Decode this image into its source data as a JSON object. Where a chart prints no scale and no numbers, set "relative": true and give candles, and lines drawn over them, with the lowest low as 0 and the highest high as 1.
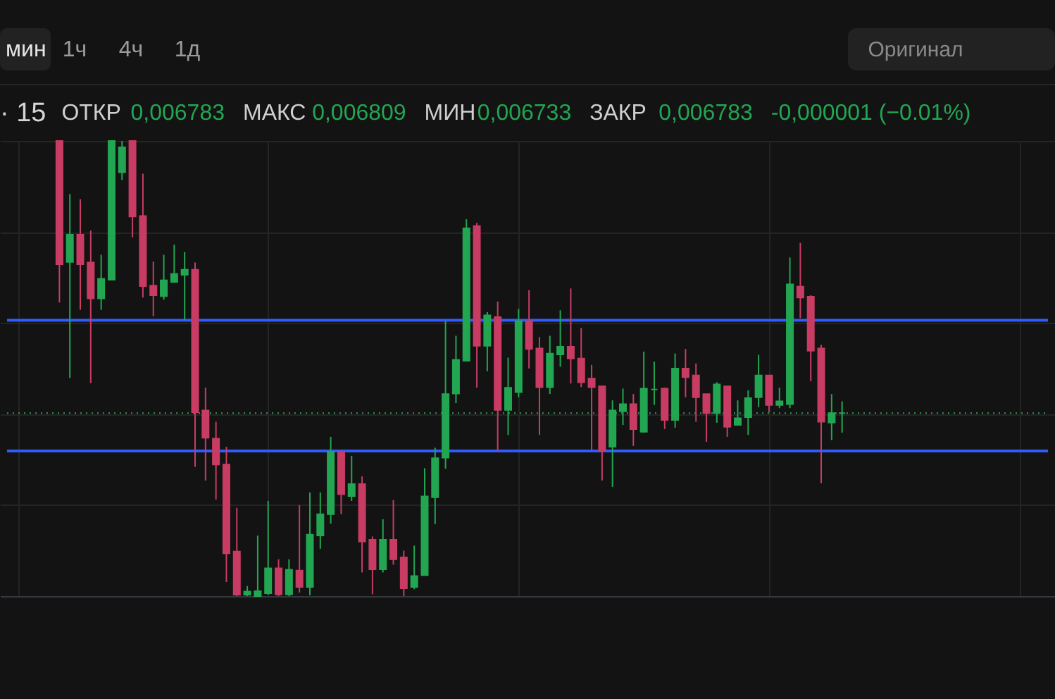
{
  "chart_data": {
    "type": "candlestick",
    "title": "· 15",
    "annotations": [
      "мин",
      "1ч",
      "4ч",
      "1д",
      "Оригинал",
      "ОТКР",
      "0,006783",
      "МАКС",
      "0,006809",
      "МИН",
      "0,006733",
      "ЗАКР",
      "0,006783",
      "-0,000001 (−0.01%)"
    ],
    "relative": true,
    "grid": true,
    "categories": [
      null,
      null,
      null,
      null,
      null,
      null,
      null,
      null,
      null,
      null,
      null,
      null,
      null,
      null,
      null,
      null,
      null,
      null,
      null,
      null,
      null,
      null,
      null,
      null,
      null,
      null,
      null,
      null,
      null,
      null,
      null,
      null,
      null,
      null,
      null,
      null,
      null,
      null,
      null,
      null,
      null,
      null,
      null,
      null,
      null,
      null,
      null,
      null,
      null,
      null,
      null,
      null,
      null,
      null,
      null,
      null,
      null,
      null,
      null,
      null,
      null,
      null,
      null,
      null,
      null,
      null,
      null,
      null,
      null,
      null,
      null,
      null,
      null,
      null,
      null,
      null
    ],
    "ohlc": [
      [
        1.0,
        1.0,
        0.645,
        0.729
      ],
      [
        0.734,
        0.883,
        0.479,
        0.794
      ],
      [
        0.794,
        0.872,
        0.629,
        0.729
      ],
      [
        0.733,
        0.803,
        0.468,
        0.654
      ],
      [
        0.654,
        0.75,
        0.629,
        0.697
      ],
      [
        0.695,
        1.0,
        0.695,
        1.0
      ],
      [
        0.931,
        1.0,
        0.914,
        0.986
      ],
      [
        1.0,
        1.0,
        0.788,
        0.834
      ],
      [
        0.835,
        0.928,
        0.656,
        0.681
      ],
      [
        0.682,
        0.735,
        0.615,
        0.661
      ],
      [
        0.659,
        0.75,
        0.651,
        0.694
      ],
      [
        0.69,
        0.772,
        0.69,
        0.708
      ],
      [
        0.706,
        0.756,
        0.606,
        0.717
      ],
      [
        0.717,
        0.733,
        0.284,
        0.404
      ],
      [
        0.408,
        0.458,
        0.254,
        0.348
      ],
      [
        0.346,
        0.383,
        0.212,
        0.289
      ],
      [
        0.289,
        0.328,
        0.031,
        0.094
      ],
      [
        0.098,
        0.194,
        0.0,
        0.003
      ],
      [
        0.003,
        0.022,
        0.0,
        0.01
      ],
      [
        0.0,
        0.133,
        0.0,
        0.011
      ],
      [
        0.006,
        0.209,
        0.003,
        0.061
      ],
      [
        0.061,
        0.081,
        0.0,
        0.004
      ],
      [
        0.004,
        0.081,
        0.0,
        0.058
      ],
      [
        0.056,
        0.2,
        0.008,
        0.02
      ],
      [
        0.02,
        0.228,
        0.002,
        0.135
      ],
      [
        0.133,
        0.228,
        0.104,
        0.18
      ],
      [
        0.18,
        0.35,
        0.159,
        0.317
      ],
      [
        0.317,
        0.322,
        0.18,
        0.224
      ],
      [
        0.22,
        0.308,
        0.209,
        0.246
      ],
      [
        0.246,
        0.263,
        0.052,
        0.12
      ],
      [
        0.124,
        0.131,
        0.004,
        0.059
      ],
      [
        0.059,
        0.169,
        0.052,
        0.124
      ],
      [
        0.124,
        0.211,
        0.069,
        0.081
      ],
      [
        0.085,
        0.1,
        0.0,
        0.017
      ],
      [
        0.02,
        0.111,
        0.015,
        0.044
      ],
      [
        0.046,
        0.281,
        0.046,
        0.219
      ],
      [
        0.217,
        0.326,
        0.158,
        0.303
      ],
      [
        0.304,
        0.604,
        0.28,
        0.444
      ],
      [
        0.445,
        0.572,
        0.424,
        0.519
      ],
      [
        0.517,
        0.828,
        0.517,
        0.808
      ],
      [
        0.813,
        0.82,
        0.458,
        0.55
      ],
      [
        0.55,
        0.624,
        0.494,
        0.617
      ],
      [
        0.613,
        0.647,
        0.319,
        0.409
      ],
      [
        0.409,
        0.524,
        0.354,
        0.458
      ],
      [
        0.448,
        0.631,
        0.437,
        0.604
      ],
      [
        0.604,
        0.672,
        0.5,
        0.543
      ],
      [
        0.544,
        0.569,
        0.354,
        0.459
      ],
      [
        0.459,
        0.572,
        0.444,
        0.533
      ],
      [
        0.531,
        0.628,
        0.504,
        0.548
      ],
      [
        0.548,
        0.676,
        0.467,
        0.522
      ],
      [
        0.522,
        0.589,
        0.459,
        0.47
      ],
      [
        0.478,
        0.508,
        0.32,
        0.459
      ],
      [
        0.461,
        0.461,
        0.254,
        0.319
      ],
      [
        0.328,
        0.43,
        0.24,
        0.408
      ],
      [
        0.406,
        0.456,
        0.376,
        0.422
      ],
      [
        0.422,
        0.444,
        0.33,
        0.367
      ],
      [
        0.361,
        0.537,
        0.359,
        0.456
      ],
      [
        0.454,
        0.515,
        0.42,
        0.454
      ],
      [
        0.456,
        0.458,
        0.367,
        0.387
      ],
      [
        0.387,
        0.533,
        0.37,
        0.5
      ],
      [
        0.5,
        0.543,
        0.437,
        0.481
      ],
      [
        0.485,
        0.511,
        0.383,
        0.437
      ],
      [
        0.444,
        0.444,
        0.339,
        0.402
      ],
      [
        0.402,
        0.47,
        0.381,
        0.465
      ],
      [
        0.461,
        0.461,
        0.35,
        0.372
      ],
      [
        0.376,
        0.43,
        0.376,
        0.391
      ],
      [
        0.393,
        0.452,
        0.354,
        0.435
      ],
      [
        0.437,
        0.53,
        0.415,
        0.485
      ],
      [
        0.485,
        0.485,
        0.404,
        0.42
      ],
      [
        0.42,
        0.458,
        0.413,
        0.428
      ],
      [
        0.422,
        0.744,
        0.413,
        0.685
      ],
      [
        0.68,
        0.776,
        0.611,
        0.656
      ],
      [
        0.658,
        0.661,
        0.472,
        0.539
      ],
      [
        0.544,
        0.552,
        0.248,
        0.383
      ],
      [
        0.381,
        0.444,
        0.343,
        0.402
      ],
      [
        0.402,
        0.428,
        0.359,
        0.402
      ]
    ],
    "colors": [
      "#c83c64",
      "#22a652",
      "#c83c64",
      "#c83c64",
      "#22a652",
      "#22a652",
      "#22a652",
      "#c83c64",
      "#c83c64",
      "#c83c64",
      "#22a652",
      "#22a652",
      "#22a652",
      "#c83c64",
      "#c83c64",
      "#c83c64",
      "#c83c64",
      "#c83c64",
      "#22a652",
      "#22a652",
      "#22a652",
      "#c83c64",
      "#22a652",
      "#c83c64",
      "#22a652",
      "#22a652",
      "#22a652",
      "#c83c64",
      "#22a652",
      "#c83c64",
      "#c83c64",
      "#22a652",
      "#c83c64",
      "#c83c64",
      "#22a652",
      "#22a652",
      "#22a652",
      "#22a652",
      "#22a652",
      "#22a652",
      "#c83c64",
      "#22a652",
      "#c83c64",
      "#22a652",
      "#22a652",
      "#c83c64",
      "#c83c64",
      "#22a652",
      "#22a652",
      "#c83c64",
      "#c83c64",
      "#c83c64",
      "#c83c64",
      "#22a652",
      "#22a652",
      "#c83c64",
      "#22a652",
      "#22a652",
      "#c83c64",
      "#22a652",
      "#c83c64",
      "#c83c64",
      "#c83c64",
      "#22a652",
      "#c83c64",
      "#22a652",
      "#22a652",
      "#22a652",
      "#c83c64",
      "#22a652",
      "#22a652",
      "#c83c64",
      "#c83c64",
      "#c83c64",
      "#22a652",
      "#22a652"
    ],
    "ref_lines": [
      {
        "axis": "y",
        "value": 0.606,
        "color": "#2f5bff",
        "line_style": "solid"
      },
      {
        "axis": "y",
        "value": 0.319,
        "color": "#2f5bff",
        "line_style": "solid"
      },
      {
        "axis": "y",
        "value": 0.402,
        "color": "#22a652",
        "line_style": "dotted"
      }
    ]
  }
}
